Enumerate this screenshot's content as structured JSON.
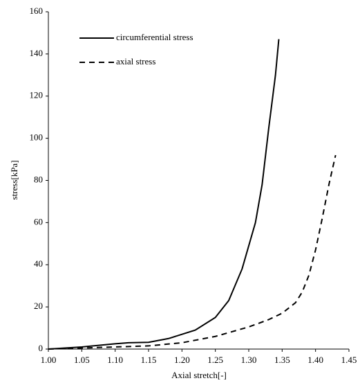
{
  "chart_data": {
    "type": "line",
    "x_label": "Axial stretch[-]",
    "y_label": "stress[kPa]",
    "series": [
      {
        "name": "circumferential stress",
        "color": "#000000",
        "dashed": false,
        "x": [
          1.0,
          1.05,
          1.1,
          1.12,
          1.15,
          1.18,
          1.2,
          1.22,
          1.25,
          1.27,
          1.29,
          1.31,
          1.32,
          1.33,
          1.34,
          1.345
        ],
        "values": [
          0,
          1,
          2.5,
          3,
          3.2,
          5,
          7,
          9,
          15,
          23,
          38,
          60,
          78,
          105,
          130,
          147
        ]
      },
      {
        "name": "axial stress",
        "color": "#000000",
        "dashed": true,
        "x": [
          1.0,
          1.1,
          1.15,
          1.2,
          1.25,
          1.3,
          1.33,
          1.35,
          1.37,
          1.38,
          1.39,
          1.4,
          1.41,
          1.42,
          1.43
        ],
        "values": [
          0,
          1,
          1.5,
          3,
          6,
          10.5,
          14,
          17,
          22,
          27,
          35,
          47,
          62,
          78,
          92
        ]
      }
    ],
    "xlim": [
      1.0,
      1.45
    ],
    "xticks": [
      {
        "value": 1.0,
        "label": "1.00"
      },
      {
        "value": 1.05,
        "label": "1.05"
      },
      {
        "value": 1.1,
        "label": "1.10"
      },
      {
        "value": 1.15,
        "label": "1.15"
      },
      {
        "value": 1.2,
        "label": "1.20"
      },
      {
        "value": 1.25,
        "label": "1.25"
      },
      {
        "value": 1.3,
        "label": "1.30"
      },
      {
        "value": 1.35,
        "label": "1.35"
      },
      {
        "value": 1.4,
        "label": "1.40"
      },
      {
        "value": 1.45,
        "label": "1.45"
      }
    ],
    "ylim": [
      0,
      160
    ],
    "yticks": [
      0,
      20,
      40,
      60,
      80,
      100,
      120,
      140,
      160
    ],
    "grid": false,
    "legend": "upper-left"
  }
}
